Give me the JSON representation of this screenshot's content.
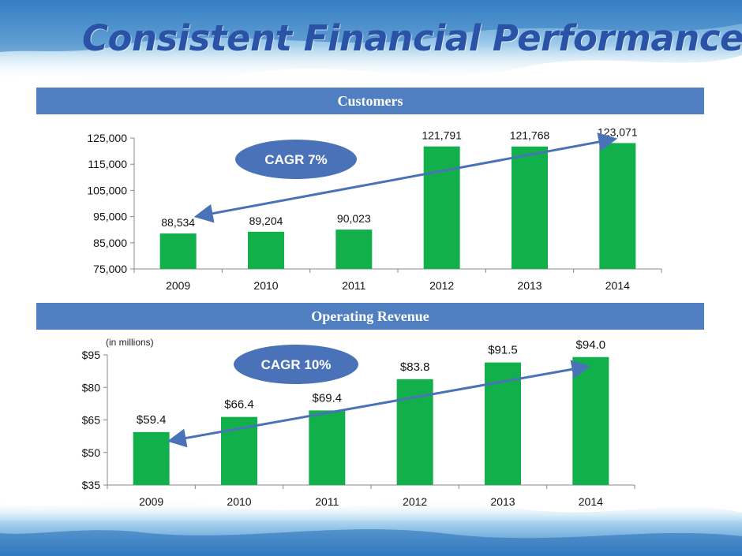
{
  "slide": {
    "title": "Consistent Financial Performance"
  },
  "colors": {
    "title": "#2a52a6",
    "band": "#4f7fc0",
    "bar": "#11b04a",
    "arrow": "#4a72b8",
    "badge": "#4a72b8"
  },
  "chart_data": [
    {
      "type": "bar",
      "title": "Customers",
      "categories": [
        "2009",
        "2010",
        "2011",
        "2012",
        "2013",
        "2014"
      ],
      "values": [
        88534,
        89204,
        90023,
        121791,
        121768,
        123071
      ],
      "data_labels": [
        "88,534",
        "89,204",
        "90,023",
        "121,791",
        "121,768",
        "123,071"
      ],
      "ylim": [
        75000,
        125000
      ],
      "yticks": [
        "75,000",
        "85,000",
        "95,000",
        "105,000",
        "115,000",
        "125,000"
      ],
      "ytick_values": [
        75000,
        85000,
        95000,
        105000,
        115000,
        125000
      ],
      "annotation": "CAGR 7%",
      "grid": false,
      "legend": "none"
    },
    {
      "type": "bar",
      "title": "Operating Revenue",
      "unit_note": "(in millions)",
      "categories": [
        "2009",
        "2010",
        "2011",
        "2012",
        "2013",
        "2014"
      ],
      "values": [
        59.4,
        66.4,
        69.4,
        83.8,
        91.5,
        94.0
      ],
      "data_labels": [
        "$59.4",
        "$66.4",
        "$69.4",
        "$83.8",
        "$91.5",
        "$94.0"
      ],
      "ylim": [
        35,
        95
      ],
      "yticks": [
        "$35",
        "$50",
        "$65",
        "$80",
        "$95"
      ],
      "ytick_values": [
        35,
        50,
        65,
        80,
        95
      ],
      "annotation": "CAGR 10%",
      "grid": false,
      "legend": "none"
    }
  ]
}
